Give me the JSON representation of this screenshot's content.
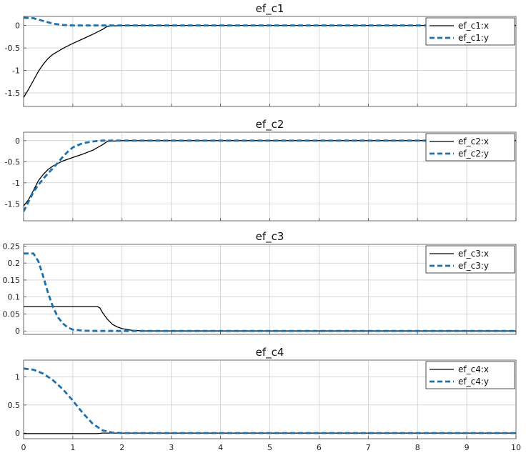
{
  "figure": {
    "xticks_label_row": [
      "0",
      "1",
      "2",
      "3",
      "4",
      "5",
      "6",
      "7",
      "8",
      "9",
      "10"
    ]
  },
  "colors": {
    "x_line": "#000000",
    "y_line": "#1f6fa8",
    "grid": "#bcbcbc"
  },
  "chart_data": [
    {
      "type": "line",
      "title": "ef_c1",
      "xlim": [
        0,
        10
      ],
      "ylim": [
        -1.8,
        0.2
      ],
      "yticks": [
        0,
        -0.5,
        -1,
        -1.5
      ],
      "ytick_labels": [
        "0",
        "-0.5",
        "-1",
        "-1.5"
      ],
      "grid": true,
      "legend_position": "top-right",
      "series": [
        {
          "name": "ef_c1:x",
          "style": "solid",
          "x": [
            0,
            0.1,
            0.2,
            0.3,
            0.4,
            0.5,
            0.6,
            0.8,
            1.0,
            1.2,
            1.4,
            1.6,
            1.7,
            2.0,
            10
          ],
          "y": [
            -1.6,
            -1.42,
            -1.22,
            -1.02,
            -0.86,
            -0.73,
            -0.64,
            -0.51,
            -0.4,
            -0.3,
            -0.2,
            -0.09,
            -0.02,
            0,
            0
          ]
        },
        {
          "name": "ef_c1:y",
          "style": "dashed",
          "x": [
            0,
            0.2,
            0.4,
            0.6,
            0.8,
            1.0,
            10
          ],
          "y": [
            0.17,
            0.16,
            0.1,
            0.04,
            0.01,
            0,
            0
          ]
        }
      ]
    },
    {
      "type": "line",
      "title": "ef_c2",
      "xlim": [
        0,
        10
      ],
      "ylim": [
        -1.9,
        0.2
      ],
      "yticks": [
        0,
        -0.5,
        -1,
        -1.5
      ],
      "ytick_labels": [
        "0",
        "-0.5",
        "-1",
        "-1.5"
      ],
      "grid": true,
      "legend_position": "top-right",
      "series": [
        {
          "name": "ef_c2:x",
          "style": "solid",
          "x": [
            0,
            0.1,
            0.2,
            0.3,
            0.4,
            0.5,
            0.6,
            0.7,
            0.8,
            1.0,
            1.2,
            1.4,
            1.6,
            1.7,
            2.0,
            10
          ],
          "y": [
            -1.55,
            -1.4,
            -1.18,
            -0.95,
            -0.8,
            -0.68,
            -0.6,
            -0.54,
            -0.48,
            -0.4,
            -0.32,
            -0.23,
            -0.1,
            -0.02,
            0,
            0
          ]
        },
        {
          "name": "ef_c2:y",
          "style": "dashed",
          "x": [
            0,
            0.1,
            0.2,
            0.3,
            0.4,
            0.5,
            0.6,
            0.7,
            0.8,
            0.9,
            1.0,
            1.2,
            1.4,
            1.6,
            1.8,
            10
          ],
          "y": [
            -1.68,
            -1.45,
            -1.22,
            -1.05,
            -0.9,
            -0.77,
            -0.65,
            -0.52,
            -0.38,
            -0.26,
            -0.16,
            -0.06,
            -0.02,
            0,
            0,
            0
          ]
        }
      ]
    },
    {
      "type": "line",
      "title": "ef_c3",
      "xlim": [
        0,
        10
      ],
      "ylim": [
        -0.01,
        0.255
      ],
      "yticks": [
        0.25,
        0.2,
        0.15,
        0.1,
        0.05,
        0
      ],
      "ytick_labels": [
        "0.25",
        "0.2",
        "0.15",
        "0.1",
        "0.05",
        "0"
      ],
      "grid": true,
      "legend_position": "top-right",
      "series": [
        {
          "name": "ef_c3:x",
          "style": "solid",
          "x": [
            0,
            1.5,
            1.55,
            1.6,
            1.7,
            1.8,
            1.9,
            2.0,
            2.2,
            2.5,
            10
          ],
          "y": [
            0.072,
            0.072,
            0.068,
            0.055,
            0.035,
            0.02,
            0.012,
            0.007,
            0.002,
            0,
            0
          ]
        },
        {
          "name": "ef_c3:y",
          "style": "dashed",
          "x": [
            0,
            0.2,
            0.3,
            0.4,
            0.5,
            0.6,
            0.7,
            0.8,
            0.9,
            1.0,
            1.2,
            1.5,
            10
          ],
          "y": [
            0.228,
            0.228,
            0.205,
            0.16,
            0.11,
            0.07,
            0.04,
            0.022,
            0.01,
            0.004,
            0.001,
            0,
            0
          ]
        }
      ]
    },
    {
      "type": "line",
      "title": "ef_c4",
      "xlim": [
        0,
        10
      ],
      "ylim": [
        -0.1,
        1.3
      ],
      "yticks": [
        1,
        0.5,
        0
      ],
      "ytick_labels": [
        "1",
        "0.5",
        "0"
      ],
      "grid": true,
      "legend_position": "top-right",
      "series": [
        {
          "name": "ef_c4:x",
          "style": "solid",
          "x": [
            0,
            1.5,
            1.6,
            10
          ],
          "y": [
            -0.01,
            -0.01,
            0,
            0
          ]
        },
        {
          "name": "ef_c4:y",
          "style": "dashed",
          "x": [
            0,
            0.2,
            0.4,
            0.6,
            0.8,
            1.0,
            1.2,
            1.4,
            1.6,
            1.8,
            2.0,
            10
          ],
          "y": [
            1.15,
            1.13,
            1.06,
            0.94,
            0.78,
            0.58,
            0.36,
            0.17,
            0.05,
            0.01,
            0,
            0
          ]
        }
      ]
    }
  ]
}
